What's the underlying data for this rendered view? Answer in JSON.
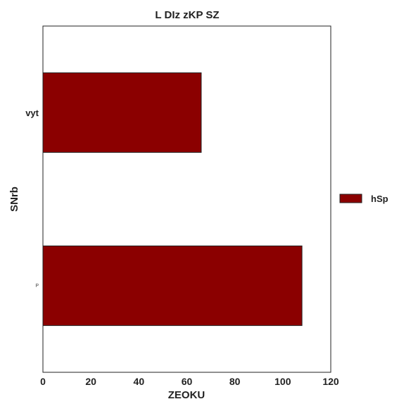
{
  "chart_data": {
    "type": "bar",
    "orientation": "horizontal",
    "title": "L DIz zKP SZ",
    "xlabel": "ZEOKU",
    "ylabel": "SNrb",
    "categories": [
      "vyt",
      "P"
    ],
    "series": [
      {
        "name": "hSp",
        "values": [
          66,
          108
        ],
        "color": "#8b0000"
      }
    ],
    "xlim": [
      0,
      120
    ],
    "xticks": [
      0,
      20,
      40,
      60,
      80,
      100,
      120
    ],
    "grid": false,
    "legend_position": "right"
  }
}
